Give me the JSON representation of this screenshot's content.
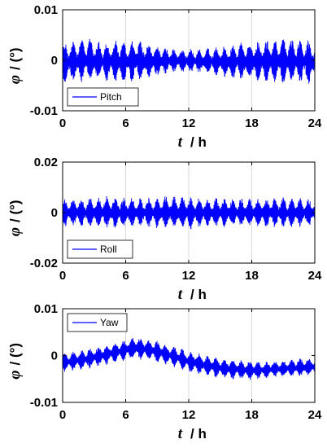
{
  "chart_data": [
    {
      "type": "line",
      "legend": "Pitch",
      "legend_position": "bottom-left",
      "line_color": "#0000ff",
      "grid": "vertical",
      "xlim": [
        0,
        24
      ],
      "x_ticks": [
        0,
        6,
        12,
        18,
        24
      ],
      "ylim": [
        -0.01,
        0.01
      ],
      "y_ticks": [
        "-0.01",
        "0",
        "0.01"
      ],
      "y_tick_values": [
        -0.01,
        0,
        0.01
      ],
      "xlabel": "t",
      "xlabel_unit": "/ h",
      "ylabel": "φ",
      "ylabel_unit": "/ (°)",
      "series": [
        {
          "name": "Pitch",
          "x": [
            0,
            1,
            2,
            3,
            4,
            5,
            6,
            7,
            8,
            9,
            10,
            11,
            12,
            13,
            14,
            15,
            16,
            17,
            18,
            19,
            20,
            21,
            22,
            23,
            24
          ],
          "upper": [
            0.0035,
            0.004,
            0.0045,
            0.004,
            0.0035,
            0.0038,
            0.0037,
            0.0042,
            0.0036,
            0.003,
            0.0025,
            0.0022,
            0.0022,
            0.0023,
            0.0024,
            0.0026,
            0.003,
            0.0036,
            0.0036,
            0.0038,
            0.0042,
            0.0045,
            0.0042,
            0.004,
            0.0035
          ],
          "lower": [
            -0.0045,
            -0.0045,
            -0.0043,
            -0.0042,
            -0.004,
            -0.0042,
            -0.0043,
            -0.0043,
            -0.004,
            -0.0033,
            -0.0026,
            -0.0024,
            -0.0024,
            -0.0025,
            -0.0028,
            -0.0032,
            -0.0038,
            -0.004,
            -0.0042,
            -0.0043,
            -0.0044,
            -0.0045,
            -0.0044,
            -0.0044,
            -0.0045
          ]
        }
      ]
    },
    {
      "type": "line",
      "legend": "Roll",
      "legend_position": "bottom-left",
      "line_color": "#0000ff",
      "grid": "vertical",
      "xlim": [
        0,
        24
      ],
      "x_ticks": [
        0,
        6,
        12,
        18,
        24
      ],
      "ylim": [
        -0.02,
        0.02
      ],
      "y_ticks": [
        "-0.02",
        "0",
        "0.02"
      ],
      "y_tick_values": [
        -0.02,
        0,
        0.02
      ],
      "xlabel": "t",
      "xlabel_unit": "/ h",
      "ylabel": "φ",
      "ylabel_unit": "/ (°)",
      "series": [
        {
          "name": "Roll",
          "x": [
            0,
            1,
            2,
            3,
            4,
            5,
            6,
            7,
            8,
            9,
            10,
            11,
            12,
            13,
            14,
            15,
            16,
            17,
            18,
            19,
            20,
            21,
            22,
            23,
            24
          ],
          "upper": [
            0.0055,
            0.0056,
            0.0058,
            0.0062,
            0.0064,
            0.0062,
            0.0058,
            0.0055,
            0.0058,
            0.0062,
            0.0065,
            0.0066,
            0.0064,
            0.006,
            0.0058,
            0.0057,
            0.0056,
            0.0055,
            0.0055,
            0.0057,
            0.006,
            0.006,
            0.0058,
            0.0056,
            0.0055
          ],
          "lower": [
            -0.0055,
            -0.0056,
            -0.0058,
            -0.0062,
            -0.0064,
            -0.0062,
            -0.0058,
            -0.0055,
            -0.0058,
            -0.0062,
            -0.0065,
            -0.0066,
            -0.0064,
            -0.006,
            -0.0058,
            -0.0057,
            -0.0056,
            -0.0055,
            -0.0055,
            -0.0057,
            -0.006,
            -0.006,
            -0.0058,
            -0.0056,
            -0.0055
          ]
        }
      ]
    },
    {
      "type": "line",
      "legend": "Yaw",
      "legend_position": "top-left",
      "line_color": "#0000ff",
      "grid": "vertical",
      "xlim": [
        0,
        24
      ],
      "x_ticks": [
        0,
        6,
        12,
        18,
        24
      ],
      "ylim": [
        -0.01,
        0.01
      ],
      "y_ticks": [
        "-0.01",
        "0",
        "0.01"
      ],
      "y_tick_values": [
        -0.01,
        0,
        0.01
      ],
      "xlabel": "t",
      "xlabel_unit": "/ h",
      "ylabel": "φ",
      "ylabel_unit": "/ (°)",
      "series": [
        {
          "name": "Yaw",
          "x": [
            0,
            1,
            2,
            3,
            4,
            5,
            6,
            7,
            8,
            9,
            10,
            11,
            12,
            13,
            14,
            15,
            16,
            17,
            18,
            19,
            20,
            21,
            22,
            23,
            24
          ],
          "upper": [
            0.0005,
            0.0008,
            0.0012,
            0.0018,
            0.0022,
            0.0028,
            0.0035,
            0.004,
            0.0038,
            0.0032,
            0.0025,
            0.0018,
            0.001,
            0.0005,
            0.0,
            -0.0005,
            -0.0008,
            -0.001,
            -0.0012,
            -0.0012,
            -0.0011,
            -0.001,
            -0.0008,
            -0.0006,
            -0.0004
          ],
          "lower": [
            -0.0035,
            -0.0032,
            -0.003,
            -0.0025,
            -0.002,
            -0.0015,
            -0.001,
            -0.0008,
            -0.001,
            -0.0015,
            -0.002,
            -0.0028,
            -0.0035,
            -0.004,
            -0.0045,
            -0.0048,
            -0.005,
            -0.0051,
            -0.0052,
            -0.005,
            -0.0048,
            -0.0046,
            -0.0045,
            -0.0044,
            -0.0042
          ]
        }
      ]
    }
  ]
}
